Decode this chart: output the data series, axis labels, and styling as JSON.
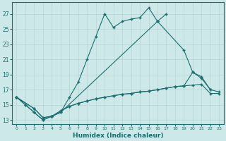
{
  "xlabel": "Humidex (Indice chaleur)",
  "background_color": "#cde8e8",
  "grid_color": "#b8d4d4",
  "line_color": "#1a6e6e",
  "xlim": [
    -0.5,
    23.5
  ],
  "ylim": [
    12.5,
    28.5
  ],
  "xticks": [
    0,
    1,
    2,
    3,
    4,
    5,
    6,
    7,
    8,
    9,
    10,
    11,
    12,
    13,
    14,
    15,
    16,
    17,
    18,
    19,
    20,
    21,
    22,
    23
  ],
  "yticks": [
    13,
    15,
    17,
    19,
    21,
    23,
    25,
    27
  ],
  "s1_x": [
    0,
    1,
    2,
    3,
    4,
    5,
    6,
    7,
    8,
    9,
    10,
    11,
    12,
    13,
    14,
    15,
    16,
    17
  ],
  "s1_y": [
    16,
    15,
    14,
    13,
    13.5,
    14,
    16,
    18,
    21,
    24,
    27,
    25.2,
    26,
    26.3,
    26.5,
    27.8,
    26,
    27
  ],
  "s2_x": [
    0,
    1,
    2,
    3,
    4,
    5,
    16,
    19,
    20,
    21,
    22
  ],
  "s2_y": [
    16,
    15,
    14,
    13,
    13.5,
    14,
    26,
    22.2,
    19.3,
    18.5,
    17
  ],
  "s3_x": [
    0,
    2,
    3,
    4,
    5,
    6,
    7,
    8,
    9,
    10,
    11,
    12,
    13,
    14,
    15,
    16,
    17,
    18,
    19,
    20,
    21,
    22,
    23
  ],
  "s3_y": [
    16,
    14.5,
    13.3,
    13.5,
    14.2,
    14.8,
    15.2,
    15.5,
    15.8,
    16.0,
    16.2,
    16.4,
    16.5,
    16.7,
    16.8,
    17.0,
    17.2,
    17.4,
    17.5,
    19.3,
    18.7,
    17.0,
    16.7
  ],
  "s4_x": [
    0,
    2,
    3,
    4,
    5,
    6,
    7,
    8,
    9,
    10,
    11,
    12,
    13,
    14,
    15,
    16,
    17,
    18,
    19,
    20,
    21,
    22,
    23
  ],
  "s4_y": [
    16,
    14.5,
    13.3,
    13.5,
    14.2,
    14.8,
    15.2,
    15.5,
    15.8,
    16.0,
    16.2,
    16.4,
    16.5,
    16.7,
    16.8,
    17.0,
    17.2,
    17.4,
    17.5,
    17.6,
    17.7,
    16.5,
    16.5
  ]
}
